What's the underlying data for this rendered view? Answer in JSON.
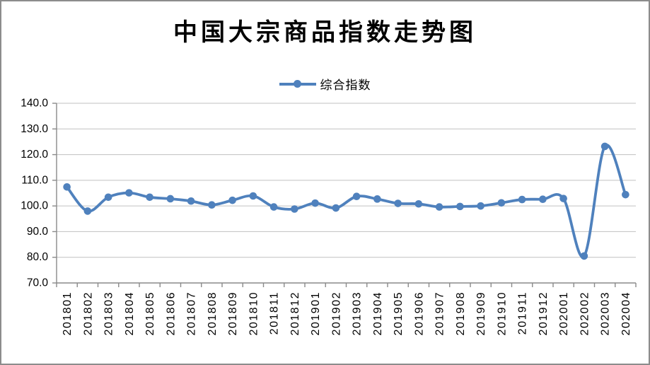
{
  "window": {
    "background": "#FFFFFF",
    "border_color": "#8C8C8C"
  },
  "chart_data": {
    "type": "line",
    "smoothed": true,
    "title": "中国大宗商品指数走势图",
    "legend_position": "top-center",
    "grid": "horizontal",
    "xlabel": "",
    "ylabel": "",
    "ylim": [
      70,
      140
    ],
    "ytick_step": 10,
    "ytick_label_format": "one-decimal",
    "axis_color": "#8A8A8A",
    "gridline_color": "#C0C0C0",
    "text_color": "#000000",
    "categories": [
      "201801",
      "201802",
      "201803",
      "201804",
      "201805",
      "201806",
      "201807",
      "201808",
      "201809",
      "201810",
      "201811",
      "201812",
      "201901",
      "201902",
      "201903",
      "201904",
      "201905",
      "201906",
      "201907",
      "201908",
      "201909",
      "201910",
      "201911",
      "201912",
      "202001",
      "202002",
      "202003",
      "202004"
    ],
    "series": [
      {
        "name": "综合指数",
        "color": "#4F81BD",
        "marker": "circle",
        "values": [
          107.4,
          98.0,
          103.4,
          105.1,
          103.4,
          102.8,
          101.9,
          100.4,
          102.2,
          103.9,
          99.6,
          98.8,
          101.1,
          99.2,
          103.7,
          102.7,
          101.0,
          100.8,
          99.6,
          99.8,
          100.0,
          101.2,
          102.5,
          102.6,
          102.9,
          80.5,
          123.2,
          104.4
        ]
      }
    ]
  }
}
